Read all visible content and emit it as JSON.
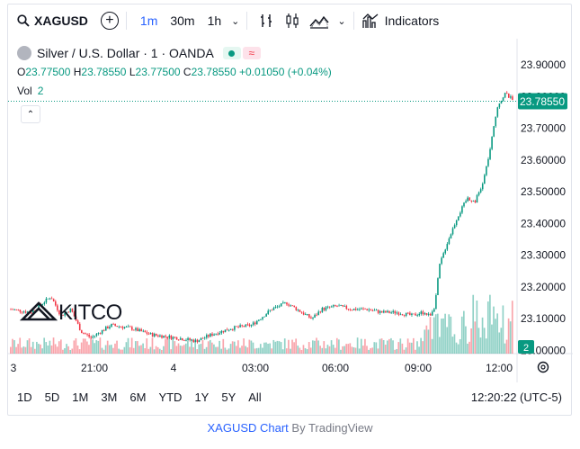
{
  "toolbar": {
    "symbol": "XAGUSD",
    "add_label": "+",
    "intervals": [
      "1m",
      "30m",
      "1h"
    ],
    "active_interval": "1m",
    "indicators_label": "Indicators"
  },
  "legend": {
    "title": "Silver / U.S. Dollar · 1 · OANDA",
    "o_label": "O",
    "o": "23.77500",
    "h_label": "H",
    "h": "23.78550",
    "l_label": "L",
    "l": "23.77500",
    "c_label": "C",
    "c": "23.78550",
    "change": "+0.01050 (+0.04%)",
    "vol_label": "Vol",
    "vol_value": "2"
  },
  "watermark": "KITCO",
  "range_buttons": [
    "1D",
    "5D",
    "1M",
    "3M",
    "6M",
    "YTD",
    "1Y",
    "5Y",
    "All"
  ],
  "clock": "12:20:22 (UTC-5)",
  "footer": {
    "link": "XAGUSD Chart",
    "by": "By TradingView"
  },
  "colors": {
    "up": "#089981",
    "down": "#f23645",
    "accent": "#2962ff"
  },
  "chart_data": {
    "type": "candlestick",
    "y_ticks": [
      "23.90000",
      "23.80000",
      "23.70000",
      "23.60000",
      "23.50000",
      "23.40000",
      "23.30000",
      "23.20000",
      "23.10000",
      "23.00000"
    ],
    "x_ticks": [
      "3",
      "21:00",
      "4",
      "03:00",
      "06:00",
      "09:00",
      "12:00"
    ],
    "ylim": [
      22.96,
      23.93
    ],
    "last_price": "23.78550",
    "last_volume": "2",
    "price_path": [
      [
        0,
        23.13
      ],
      [
        0.04,
        23.12
      ],
      [
        0.08,
        23.17
      ],
      [
        0.1,
        23.11
      ],
      [
        0.12,
        23.13
      ],
      [
        0.14,
        23.06
      ],
      [
        0.16,
        23.04
      ],
      [
        0.2,
        23.08
      ],
      [
        0.24,
        23.07
      ],
      [
        0.28,
        23.05
      ],
      [
        0.33,
        23.04
      ],
      [
        0.37,
        23.03
      ],
      [
        0.4,
        23.05
      ],
      [
        0.44,
        23.07
      ],
      [
        0.48,
        23.08
      ],
      [
        0.52,
        23.13
      ],
      [
        0.55,
        23.15
      ],
      [
        0.58,
        23.12
      ],
      [
        0.6,
        23.1
      ],
      [
        0.62,
        23.13
      ],
      [
        0.65,
        23.14
      ],
      [
        0.68,
        23.13
      ],
      [
        0.71,
        23.13
      ],
      [
        0.74,
        23.12
      ],
      [
        0.77,
        23.12
      ],
      [
        0.8,
        23.11
      ],
      [
        0.82,
        23.12
      ],
      [
        0.835,
        23.11
      ],
      [
        0.845,
        23.14
      ],
      [
        0.855,
        23.27
      ],
      [
        0.87,
        23.34
      ],
      [
        0.89,
        23.42
      ],
      [
        0.91,
        23.48
      ],
      [
        0.925,
        23.47
      ],
      [
        0.94,
        23.52
      ],
      [
        0.955,
        23.63
      ],
      [
        0.97,
        23.77
      ],
      [
        0.985,
        23.81
      ],
      [
        1,
        23.79
      ]
    ]
  }
}
